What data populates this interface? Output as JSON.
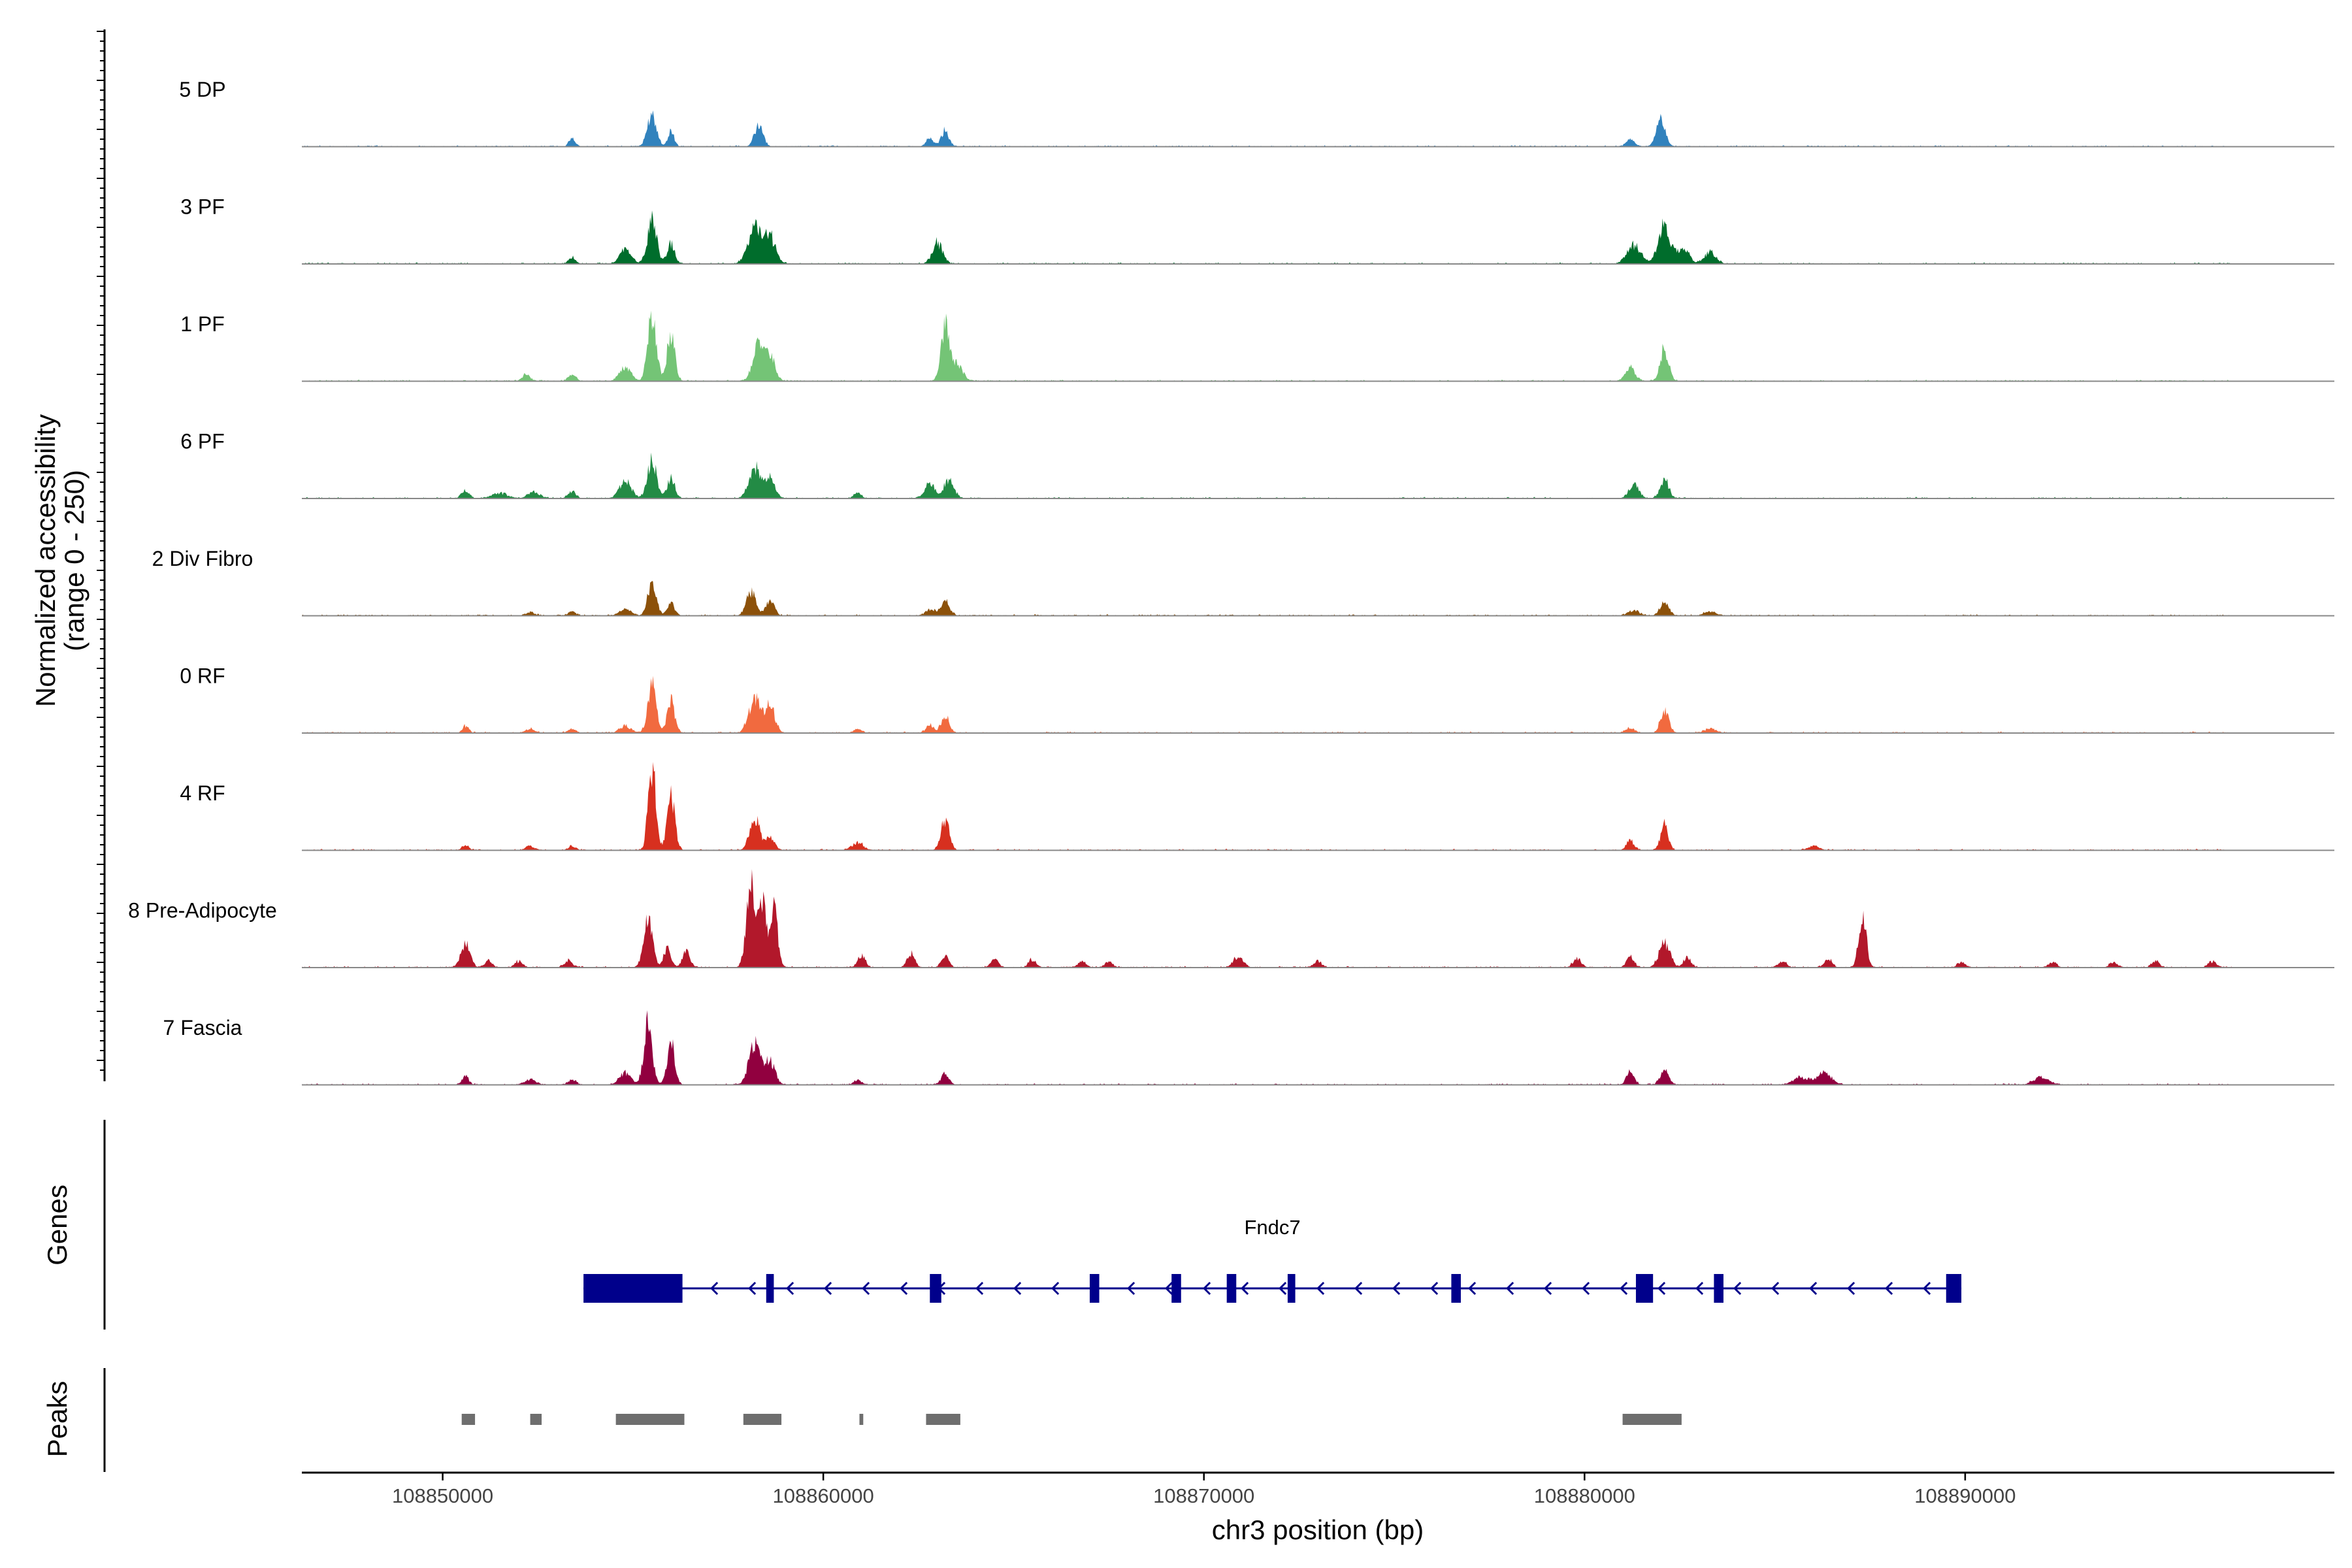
{
  "chart_data": {
    "type": "area",
    "title": "",
    "ylabel_line1": "Normalized accessibility",
    "ylabel_line2": "(range 0 - 250)",
    "ylim": [
      0,
      250
    ],
    "xlabel": "chr3 position (bp)",
    "xlim": [
      108846300,
      108899700
    ],
    "x_ticks": [
      108850000,
      108860000,
      108870000,
      108880000,
      108890000
    ],
    "x_tick_labels": [
      "108850000",
      "108860000",
      "108870000",
      "108880000",
      "108890000"
    ],
    "series": [
      {
        "name": "5 DP",
        "color": "#3182bd",
        "peaks": [
          [
            108853400,
            25,
            80
          ],
          [
            108855500,
            95,
            120
          ],
          [
            108856000,
            45,
            80
          ],
          [
            108858300,
            65,
            110
          ],
          [
            108862800,
            25,
            100
          ],
          [
            108863200,
            50,
            100
          ],
          [
            108881200,
            25,
            100
          ],
          [
            108882000,
            80,
            120
          ]
        ]
      },
      {
        "name": "3 PF",
        "color": "#006d2c",
        "peaks": [
          [
            108853400,
            20,
            80
          ],
          [
            108854800,
            45,
            150
          ],
          [
            108855500,
            135,
            120
          ],
          [
            108856000,
            60,
            100
          ],
          [
            108858200,
            105,
            180
          ],
          [
            108858600,
            80,
            150
          ],
          [
            108863000,
            65,
            130
          ],
          [
            108881300,
            55,
            180
          ],
          [
            108882100,
            115,
            160
          ],
          [
            108882600,
            45,
            150
          ],
          [
            108883300,
            35,
            150
          ]
        ]
      },
      {
        "name": "1 PF",
        "color": "#74c476",
        "peaks": [
          [
            108852200,
            20,
            100
          ],
          [
            108853400,
            20,
            100
          ],
          [
            108854800,
            40,
            150
          ],
          [
            108855500,
            215,
            110
          ],
          [
            108856000,
            150,
            100
          ],
          [
            108858300,
            110,
            150
          ],
          [
            108858600,
            70,
            130
          ],
          [
            108863200,
            160,
            110
          ],
          [
            108863500,
            50,
            150
          ],
          [
            108881200,
            40,
            130
          ],
          [
            108882100,
            100,
            110
          ]
        ]
      },
      {
        "name": "6 PF",
        "color": "#238b45",
        "peaks": [
          [
            108850600,
            25,
            100
          ],
          [
            108851500,
            15,
            200
          ],
          [
            108852400,
            20,
            150
          ],
          [
            108853400,
            20,
            100
          ],
          [
            108854800,
            55,
            150
          ],
          [
            108855500,
            115,
            120
          ],
          [
            108856000,
            65,
            100
          ],
          [
            108858200,
            95,
            150
          ],
          [
            108858600,
            60,
            130
          ],
          [
            108860900,
            15,
            100
          ],
          [
            108862800,
            45,
            130
          ],
          [
            108863300,
            55,
            130
          ],
          [
            108881300,
            40,
            130
          ],
          [
            108882100,
            60,
            110
          ]
        ]
      },
      {
        "name": "2 Div Fibro",
        "color": "#8c510a",
        "peaks": [
          [
            108852300,
            10,
            120
          ],
          [
            108853400,
            12,
            100
          ],
          [
            108854800,
            20,
            150
          ],
          [
            108855500,
            100,
            110
          ],
          [
            108856000,
            35,
            100
          ],
          [
            108858100,
            75,
            120
          ],
          [
            108858600,
            45,
            110
          ],
          [
            108862800,
            20,
            110
          ],
          [
            108863200,
            45,
            120
          ],
          [
            108881300,
            15,
            150
          ],
          [
            108882100,
            45,
            110
          ],
          [
            108883300,
            12,
            150
          ]
        ]
      },
      {
        "name": "0 RF",
        "color": "#f16a3f",
        "peaks": [
          [
            108850600,
            20,
            80
          ],
          [
            108852300,
            12,
            120
          ],
          [
            108853400,
            12,
            100
          ],
          [
            108854800,
            20,
            150
          ],
          [
            108855500,
            145,
            110
          ],
          [
            108856000,
            95,
            100
          ],
          [
            108858200,
            110,
            150
          ],
          [
            108858600,
            80,
            130
          ],
          [
            108860900,
            12,
            100
          ],
          [
            108862800,
            25,
            100
          ],
          [
            108863200,
            55,
            100
          ],
          [
            108881200,
            15,
            120
          ],
          [
            108882100,
            65,
            110
          ],
          [
            108883300,
            12,
            150
          ]
        ]
      },
      {
        "name": "4 RF",
        "color": "#d7301f",
        "peaks": [
          [
            108850600,
            15,
            90
          ],
          [
            108852300,
            12,
            120
          ],
          [
            108853400,
            12,
            100
          ],
          [
            108855500,
            250,
            100
          ],
          [
            108856000,
            170,
            100
          ],
          [
            108858200,
            95,
            130
          ],
          [
            108858600,
            40,
            110
          ],
          [
            108860900,
            22,
            150
          ],
          [
            108863200,
            90,
            110
          ],
          [
            108881200,
            30,
            100
          ],
          [
            108882100,
            75,
            100
          ],
          [
            108886000,
            12,
            150
          ]
        ]
      },
      {
        "name": "8 Pre-Adipocyte",
        "color": "#b2182b",
        "peaks": [
          [
            108850600,
            70,
            120
          ],
          [
            108851200,
            20,
            100
          ],
          [
            108852000,
            18,
            100
          ],
          [
            108853300,
            22,
            100
          ],
          [
            108855400,
            170,
            110
          ],
          [
            108855900,
            55,
            100
          ],
          [
            108856400,
            50,
            100
          ],
          [
            108858100,
            245,
            120
          ],
          [
            108858400,
            200,
            100
          ],
          [
            108858700,
            170,
            100
          ],
          [
            108861000,
            35,
            100
          ],
          [
            108862300,
            40,
            100
          ],
          [
            108863200,
            35,
            100
          ],
          [
            108864500,
            25,
            100
          ],
          [
            108865500,
            25,
            100
          ],
          [
            108866800,
            20,
            100
          ],
          [
            108867500,
            18,
            100
          ],
          [
            108870900,
            32,
            130
          ],
          [
            108873000,
            18,
            100
          ],
          [
            108879800,
            28,
            100
          ],
          [
            108881200,
            30,
            100
          ],
          [
            108882100,
            75,
            140
          ],
          [
            108882700,
            30,
            100
          ],
          [
            108885200,
            18,
            100
          ],
          [
            108886400,
            25,
            100
          ],
          [
            108887300,
            160,
            100
          ],
          [
            108889900,
            15,
            100
          ],
          [
            108892300,
            18,
            100
          ],
          [
            108893900,
            15,
            100
          ],
          [
            108895000,
            20,
            100
          ],
          [
            108896500,
            18,
            100
          ]
        ]
      },
      {
        "name": "7 Fascia",
        "color": "#91003f",
        "peaks": [
          [
            108850600,
            25,
            90
          ],
          [
            108852300,
            15,
            150
          ],
          [
            108853400,
            15,
            100
          ],
          [
            108854800,
            35,
            150
          ],
          [
            108855400,
            180,
            110
          ],
          [
            108856000,
            125,
            100
          ],
          [
            108858200,
            125,
            150
          ],
          [
            108858600,
            70,
            130
          ],
          [
            108860900,
            15,
            100
          ],
          [
            108863200,
            35,
            100
          ],
          [
            108881200,
            40,
            100
          ],
          [
            108882100,
            45,
            110
          ],
          [
            108885700,
            22,
            200
          ],
          [
            108886300,
            35,
            180
          ],
          [
            108892000,
            22,
            200
          ]
        ]
      }
    ],
    "gene": {
      "name": "Fndc7",
      "strand": "-",
      "start": 108853700,
      "end": 108889900,
      "exons": [
        [
          108853700,
          108856300
        ],
        [
          108858500,
          108858700
        ],
        [
          108862800,
          108863100
        ],
        [
          108867000,
          108867250
        ],
        [
          108869150,
          108869400
        ],
        [
          108870600,
          108870850
        ],
        [
          108872200,
          108872400
        ],
        [
          108876500,
          108876750
        ],
        [
          108881350,
          108881800
        ],
        [
          108883400,
          108883650
        ],
        [
          108889500,
          108889900
        ]
      ]
    },
    "peaks_track": [
      [
        108850500,
        108850850
      ],
      [
        108852300,
        108852600
      ],
      [
        108854550,
        108856350
      ],
      [
        108857900,
        108858900
      ],
      [
        108860950,
        108861050
      ],
      [
        108862700,
        108863600
      ],
      [
        108881000,
        108882550
      ]
    ],
    "panel_labels": {
      "genes": "Genes",
      "peaks": "Peaks"
    }
  }
}
